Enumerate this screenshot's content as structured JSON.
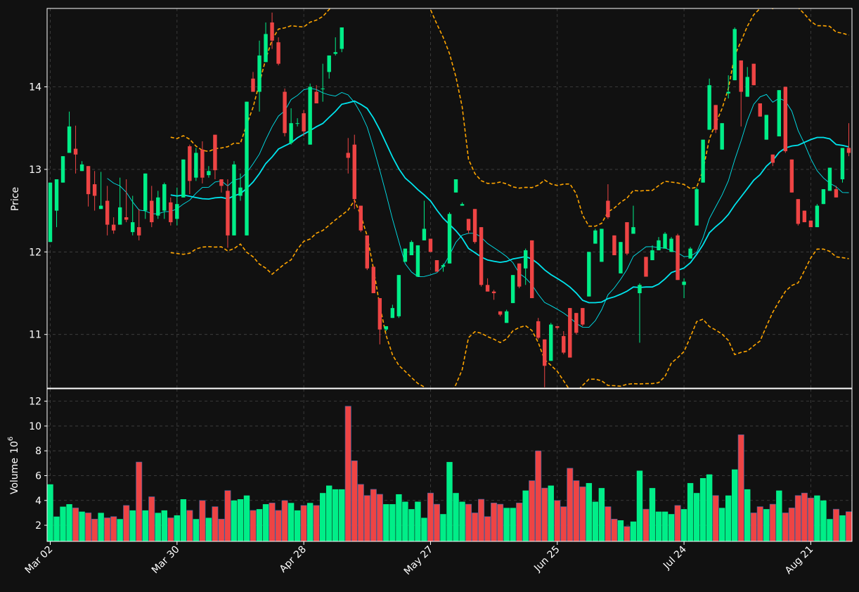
{
  "colors": {
    "background": "#111111",
    "up": "#00ee88",
    "down": "#ee4444",
    "sma_short": "#00e5ee",
    "sma_long": "#00e5ee",
    "bollinger": "#ffa500",
    "grid": "#444444",
    "frame": "#ffffff"
  },
  "chart_data": {
    "type": "candlestick",
    "title": "",
    "price_panel": {
      "ylabel": "Price",
      "ylim": [
        10.35,
        14.95
      ],
      "yticks": [
        11,
        12,
        13,
        14
      ]
    },
    "volume_panel": {
      "ylabel": "Volume",
      "ylabel_exponent": "10",
      "ylabel_exponent_power": "6",
      "ylim": [
        0.7,
        13.0
      ],
      "yticks": [
        2,
        4,
        6,
        8,
        10,
        12
      ]
    },
    "x_tick_labels": [
      "Mar 02",
      "Mar 30",
      "Apr 28",
      "May 27",
      "Jun 25",
      "Jul 24",
      "Aug 21"
    ],
    "x_tick_indices": [
      0,
      20,
      40,
      60,
      80,
      100,
      120
    ],
    "grid": true,
    "ohlc": [
      [
        12.12,
        12.84,
        12.12,
        12.84,
        5.3
      ],
      [
        12.5,
        12.88,
        12.3,
        12.88,
        2.7
      ],
      [
        12.84,
        13.16,
        12.84,
        13.16,
        3.5
      ],
      [
        13.2,
        13.7,
        13.2,
        13.52,
        3.7
      ],
      [
        13.25,
        13.53,
        12.95,
        13.18,
        3.4
      ],
      [
        12.98,
        13.1,
        12.98,
        13.06,
        3.1
      ],
      [
        13.04,
        13.04,
        12.55,
        12.7,
        3.0
      ],
      [
        12.82,
        12.98,
        12.5,
        12.68,
        2.5
      ],
      [
        12.52,
        12.97,
        12.52,
        12.56,
        3.0
      ],
      [
        12.62,
        12.8,
        12.2,
        12.33,
        2.6
      ],
      [
        12.33,
        12.42,
        12.22,
        12.26,
        2.7
      ],
      [
        12.33,
        12.9,
        12.33,
        12.54,
        2.5
      ],
      [
        12.42,
        12.88,
        12.36,
        12.39,
        3.6
      ],
      [
        12.24,
        12.68,
        12.2,
        12.36,
        3.2
      ],
      [
        12.3,
        12.52,
        12.14,
        12.2,
        7.1
      ],
      [
        12.5,
        12.95,
        12.4,
        12.95,
        3.2
      ],
      [
        12.62,
        12.8,
        12.3,
        12.36,
        4.3
      ],
      [
        12.44,
        12.74,
        12.4,
        12.66,
        3.0
      ],
      [
        12.5,
        12.84,
        12.4,
        12.82,
        3.2
      ],
      [
        12.6,
        12.66,
        12.32,
        12.36,
        2.6
      ],
      [
        12.4,
        12.78,
        12.32,
        12.58,
        2.8
      ],
      [
        12.66,
        13.12,
        12.66,
        13.12,
        4.1
      ],
      [
        13.28,
        13.3,
        12.7,
        12.86,
        3.2
      ],
      [
        12.9,
        13.26,
        12.86,
        13.2,
        2.5
      ],
      [
        13.24,
        13.34,
        12.83,
        12.9,
        4.0
      ],
      [
        12.93,
        13.04,
        12.9,
        12.98,
        2.6
      ],
      [
        13.42,
        13.42,
        12.88,
        12.99,
        3.5
      ],
      [
        12.88,
        12.88,
        12.72,
        12.8,
        2.5
      ],
      [
        12.74,
        12.88,
        12.05,
        12.2,
        4.8
      ],
      [
        12.2,
        13.1,
        12.2,
        13.06,
        4.0
      ],
      [
        12.68,
        12.95,
        12.62,
        12.78,
        4.1
      ],
      [
        12.2,
        13.82,
        12.2,
        13.82,
        4.4
      ],
      [
        14.1,
        14.18,
        13.94,
        13.94,
        3.2
      ],
      [
        13.94,
        14.56,
        13.7,
        14.38,
        3.3
      ],
      [
        14.3,
        14.78,
        14.3,
        14.64,
        3.7
      ],
      [
        14.78,
        14.9,
        14.46,
        14.56,
        3.8
      ],
      [
        14.54,
        14.6,
        14.26,
        14.28,
        3.2
      ],
      [
        13.94,
        13.98,
        13.4,
        13.44,
        4.0
      ],
      [
        13.32,
        13.74,
        13.3,
        13.56,
        3.8
      ],
      [
        13.56,
        13.62,
        13.52,
        13.56,
        3.2
      ],
      [
        13.68,
        13.72,
        13.4,
        13.46,
        3.6
      ],
      [
        13.3,
        14.04,
        13.3,
        14.0,
        3.8
      ],
      [
        13.94,
        14.02,
        13.8,
        13.8,
        3.6
      ],
      [
        13.98,
        14.28,
        13.82,
        13.98,
        4.6
      ],
      [
        14.18,
        14.38,
        14.1,
        14.38,
        5.2
      ],
      [
        14.4,
        14.6,
        14.38,
        14.42,
        4.9
      ],
      [
        14.46,
        14.72,
        14.42,
        14.72,
        4.9
      ],
      [
        13.2,
        13.38,
        12.95,
        13.14,
        11.6
      ],
      [
        13.3,
        13.42,
        12.52,
        12.64,
        7.2
      ],
      [
        12.56,
        12.56,
        12.24,
        12.26,
        5.3
      ],
      [
        12.2,
        12.2,
        11.78,
        11.8,
        4.4
      ],
      [
        11.82,
        11.82,
        11.5,
        11.5,
        4.9
      ],
      [
        11.44,
        11.44,
        10.88,
        11.06,
        4.5
      ],
      [
        11.06,
        11.1,
        11.04,
        11.1,
        3.7
      ],
      [
        11.2,
        11.36,
        11.2,
        11.32,
        3.7
      ],
      [
        11.22,
        11.72,
        11.2,
        11.72,
        4.5
      ],
      [
        11.88,
        12.04,
        11.88,
        12.04,
        3.9
      ],
      [
        11.96,
        12.14,
        11.96,
        12.12,
        3.3
      ],
      [
        11.7,
        12.08,
        11.7,
        12.08,
        3.9
      ],
      [
        12.14,
        12.62,
        12.14,
        12.28,
        2.6
      ],
      [
        12.16,
        12.16,
        12.0,
        12.0,
        4.6
      ],
      [
        11.9,
        11.9,
        11.76,
        11.76,
        3.7
      ],
      [
        11.82,
        11.86,
        11.76,
        11.84,
        2.9
      ],
      [
        11.86,
        12.48,
        11.86,
        12.46,
        7.1
      ],
      [
        12.72,
        12.88,
        12.72,
        12.88,
        4.6
      ],
      [
        12.56,
        12.6,
        12.56,
        12.58,
        3.9
      ],
      [
        12.4,
        12.4,
        12.22,
        12.26,
        3.7
      ],
      [
        12.52,
        12.52,
        12.1,
        12.12,
        3.0
      ],
      [
        12.3,
        12.3,
        11.58,
        11.6,
        4.1
      ],
      [
        11.6,
        11.68,
        11.52,
        11.52,
        2.7
      ],
      [
        11.52,
        11.54,
        11.42,
        11.5,
        3.8
      ],
      [
        11.28,
        11.28,
        11.22,
        11.24,
        3.7
      ],
      [
        11.14,
        11.3,
        11.14,
        11.28,
        3.4
      ],
      [
        11.38,
        11.72,
        11.38,
        11.72,
        3.4
      ],
      [
        11.86,
        11.86,
        11.56,
        11.58,
        3.8
      ],
      [
        11.8,
        12.04,
        11.6,
        12.02,
        4.8
      ],
      [
        12.14,
        12.14,
        11.44,
        11.44,
        5.6
      ],
      [
        11.16,
        11.2,
        10.94,
        10.96,
        8.0
      ],
      [
        10.94,
        10.94,
        10.36,
        10.62,
        5.0
      ],
      [
        10.68,
        11.14,
        10.68,
        11.12,
        5.2
      ],
      [
        11.1,
        11.1,
        11.06,
        11.08,
        4.0
      ],
      [
        10.98,
        11.04,
        10.76,
        10.78,
        3.5
      ],
      [
        11.32,
        11.32,
        10.72,
        10.72,
        6.6
      ],
      [
        11.26,
        11.26,
        11.0,
        11.02,
        5.6
      ],
      [
        11.32,
        11.32,
        11.1,
        11.12,
        5.1
      ],
      [
        11.46,
        12.0,
        11.46,
        12.0,
        5.4
      ],
      [
        12.1,
        12.28,
        12.1,
        12.26,
        3.9
      ],
      [
        11.88,
        12.28,
        11.88,
        12.28,
        5.0
      ],
      [
        12.62,
        12.82,
        12.4,
        12.42,
        3.5
      ],
      [
        12.2,
        12.2,
        11.96,
        11.96,
        2.5
      ],
      [
        11.74,
        12.12,
        11.74,
        12.12,
        2.4
      ],
      [
        12.36,
        12.36,
        11.96,
        11.98,
        1.9
      ],
      [
        12.22,
        12.56,
        12.22,
        12.3,
        2.3
      ],
      [
        11.5,
        11.62,
        10.9,
        11.6,
        6.4
      ],
      [
        11.94,
        11.94,
        11.7,
        11.7,
        3.3
      ],
      [
        11.9,
        12.08,
        11.9,
        12.02,
        5.0
      ],
      [
        12.02,
        12.18,
        12.02,
        12.14,
        3.1
      ],
      [
        12.04,
        12.24,
        12.04,
        12.22,
        3.1
      ],
      [
        12.0,
        12.18,
        12.0,
        12.16,
        2.9
      ],
      [
        12.2,
        12.22,
        11.66,
        11.66,
        3.6
      ],
      [
        11.6,
        11.68,
        11.44,
        11.64,
        3.3
      ],
      [
        11.92,
        12.06,
        11.92,
        12.04,
        5.4
      ],
      [
        12.32,
        12.78,
        12.32,
        12.76,
        4.6
      ],
      [
        12.84,
        13.36,
        12.84,
        13.36,
        5.8
      ],
      [
        13.48,
        14.1,
        13.48,
        14.02,
        6.1
      ],
      [
        13.78,
        13.78,
        13.44,
        13.48,
        4.4
      ],
      [
        13.24,
        13.56,
        13.24,
        13.56,
        3.4
      ],
      [
        13.92,
        14.14,
        13.86,
        13.94,
        4.4
      ],
      [
        14.08,
        14.72,
        14.08,
        14.7,
        6.5
      ],
      [
        14.32,
        14.32,
        13.52,
        13.94,
        9.3
      ],
      [
        13.88,
        14.24,
        13.88,
        14.12,
        4.9
      ],
      [
        14.28,
        14.28,
        14.02,
        14.02,
        3.0
      ],
      [
        13.8,
        13.8,
        13.64,
        13.64,
        3.5
      ],
      [
        13.36,
        13.66,
        13.36,
        13.66,
        3.3
      ],
      [
        13.18,
        13.18,
        13.04,
        13.08,
        3.7
      ],
      [
        13.4,
        13.96,
        13.4,
        13.96,
        4.8
      ],
      [
        14.0,
        14.0,
        13.2,
        13.22,
        3.0
      ],
      [
        13.12,
        13.12,
        12.72,
        12.72,
        3.4
      ],
      [
        12.64,
        12.64,
        12.32,
        12.34,
        4.4
      ],
      [
        12.5,
        12.5,
        12.36,
        12.36,
        4.6
      ],
      [
        12.38,
        12.38,
        12.3,
        12.3,
        4.2
      ],
      [
        12.3,
        12.58,
        12.3,
        12.56,
        4.4
      ],
      [
        12.58,
        12.76,
        12.58,
        12.76,
        4.0
      ],
      [
        12.74,
        13.02,
        12.74,
        13.02,
        2.5
      ],
      [
        12.76,
        12.8,
        12.66,
        12.66,
        3.3
      ],
      [
        12.88,
        13.26,
        12.84,
        13.26,
        2.8
      ],
      [
        13.26,
        13.56,
        13.16,
        13.2,
        3.1
      ]
    ]
  }
}
